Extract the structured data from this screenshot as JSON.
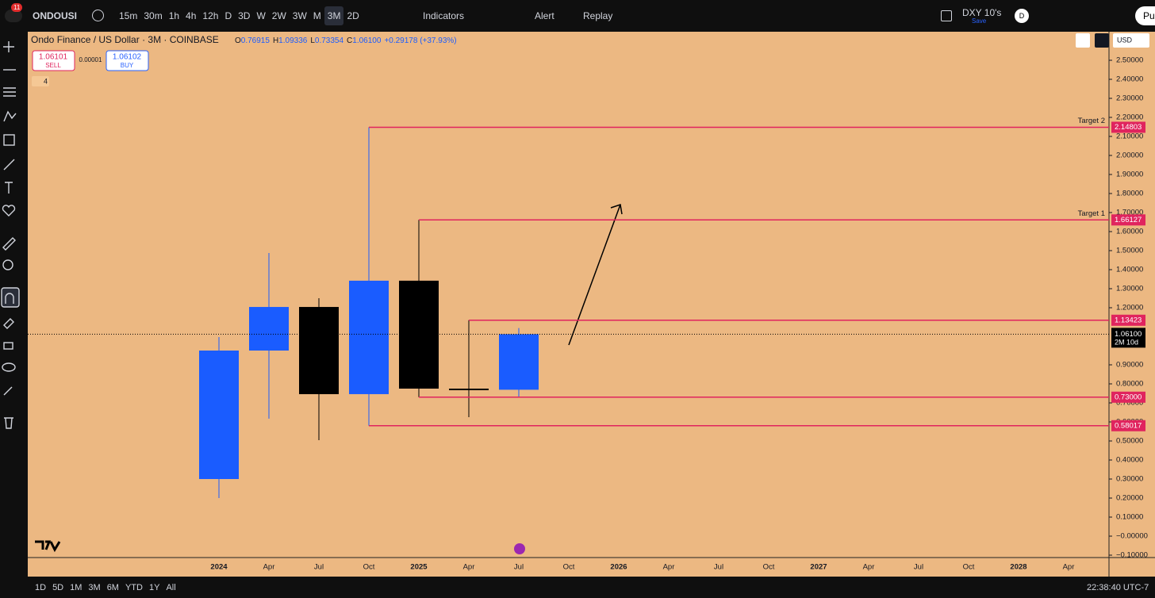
{
  "topbar": {
    "badge": "11",
    "symbol": "ONDOUSI",
    "intervals": [
      "15m",
      "30m",
      "1h",
      "4h",
      "12h",
      "D",
      "3D",
      "W",
      "2W",
      "3W",
      "M",
      "3M",
      "2D"
    ],
    "active_interval": "3M",
    "indicators": "Indicators",
    "alert": "Alert",
    "replay": "Replay",
    "compare": "DXY 10's",
    "save": "Save",
    "avatar": "D",
    "publish": "Pu"
  },
  "legend": {
    "title": "Ondo Finance / US Dollar · 3M · COINBASE",
    "o_key": "O",
    "o": "0.76915",
    "h_key": "H",
    "h": "1.09336",
    "l_key": "L",
    "l": "0.73354",
    "c_key": "C",
    "c": "1.06100",
    "change": "+0.29178 (+37.93%)",
    "sell_price": "1.06101",
    "sell": "SELL",
    "spread": "0.00001",
    "buy_price": "1.06102",
    "buy": "BUY",
    "indicator_count": "4"
  },
  "price_axis": {
    "currency": "USD"
  },
  "chart_data": {
    "type": "candlestick",
    "categories": [
      "2024",
      "Apr",
      "Jul",
      "Oct",
      "2025",
      "Apr",
      "Jul",
      "Oct",
      "2026",
      "Apr",
      "Jul",
      "Oct",
      "2027",
      "Apr",
      "Jul",
      "Oct",
      "2028",
      "Apr"
    ],
    "open": [
      0.3,
      0.975,
      1.204,
      0.746,
      1.342,
      0.775,
      0.76915,
      null,
      null,
      null,
      null,
      null,
      null,
      null,
      null,
      null,
      null,
      null
    ],
    "high": [
      1.046,
      1.4875,
      1.25,
      2.14803,
      1.66127,
      1.13423,
      1.09336,
      null,
      null,
      null,
      null,
      null,
      null,
      null,
      null,
      null,
      null,
      null
    ],
    "low": [
      0.2,
      0.617,
      0.504,
      0.58017,
      0.73,
      0.625,
      0.73354,
      null,
      null,
      null,
      null,
      null,
      null,
      null,
      null,
      null,
      null,
      null
    ],
    "close": [
      0.975,
      1.204,
      0.746,
      1.342,
      0.775,
      0.77,
      1.061,
      null,
      null,
      null,
      null,
      null,
      null,
      null,
      null,
      null,
      null,
      null
    ],
    "up_color": "#1a5cff",
    "down_color": "#000000",
    "level_color": "#e0245e",
    "ylim": [
      -0.1125,
      2.65
    ],
    "yticks": [
      {
        "value": 2.5,
        "label": "2.50000"
      },
      {
        "value": 2.4,
        "label": "2.40000"
      },
      {
        "value": 2.3,
        "label": "2.30000"
      },
      {
        "value": 2.2,
        "label": "2.20000"
      },
      {
        "value": 2.1,
        "label": "2.10000"
      },
      {
        "value": 2.0,
        "label": "2.00000"
      },
      {
        "value": 1.9,
        "label": "1.90000"
      },
      {
        "value": 1.8,
        "label": "1.80000"
      },
      {
        "value": 1.7,
        "label": "1.70000"
      },
      {
        "value": 1.6,
        "label": "1.60000"
      },
      {
        "value": 1.5,
        "label": "1.50000"
      },
      {
        "value": 1.4,
        "label": "1.40000"
      },
      {
        "value": 1.3,
        "label": "1.30000"
      },
      {
        "value": 1.2,
        "label": "1.20000"
      },
      {
        "value": 0.9,
        "label": "0.90000"
      },
      {
        "value": 0.8,
        "label": "0.80000"
      },
      {
        "value": 0.7,
        "label": "0.70000"
      },
      {
        "value": 0.6,
        "label": "0.60000"
      },
      {
        "value": 0.5,
        "label": "0.50000"
      },
      {
        "value": 0.4,
        "label": "0.40000"
      },
      {
        "value": 0.3,
        "label": "0.30000"
      },
      {
        "value": 0.2,
        "label": "0.20000"
      },
      {
        "value": 0.1,
        "label": "0.10000"
      },
      {
        "value": 0,
        "label": "−0.00000"
      },
      {
        "value": -0.1,
        "label": "−0.10000"
      }
    ],
    "levels": [
      {
        "value": 2.14803,
        "label": "2.14803",
        "name": "Target 2"
      },
      {
        "value": 1.66127,
        "label": "1.66127",
        "name": "Target 1"
      },
      {
        "value": 1.13423,
        "label": "1.13423"
      },
      {
        "value": 0.73,
        "label": "0.73000"
      },
      {
        "value": 0.58017,
        "label": "0.58017"
      }
    ],
    "current": {
      "value": 1.061,
      "label": "1.06100",
      "countdown": "2M 10d"
    }
  },
  "bottombar": {
    "ranges": [
      "1D",
      "5D",
      "1M",
      "3M",
      "6M",
      "YTD",
      "1Y",
      "All"
    ],
    "clock": "22:38:40 UTC-7"
  }
}
